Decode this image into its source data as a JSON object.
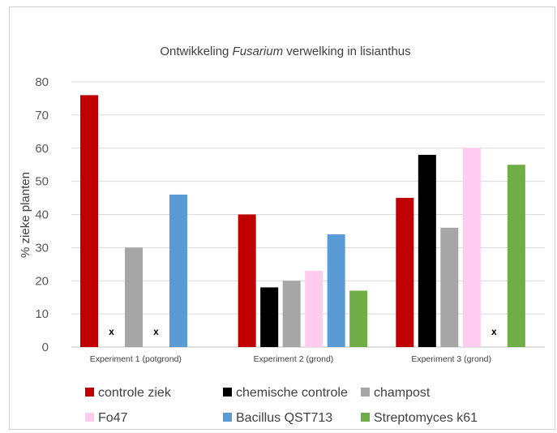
{
  "chart_data": {
    "type": "bar",
    "title_parts": [
      "Ontwikkeling ",
      "Fusarium",
      " verwelking in lisianthus"
    ],
    "ylabel": "% zieke planten",
    "ylim": [
      0,
      80
    ],
    "yticks": [
      0,
      10,
      20,
      30,
      40,
      50,
      60,
      70,
      80
    ],
    "grid": true,
    "legend_position": "bottom",
    "categories": [
      "Experiment 1 (potgrond)",
      "Experiment 2 (grond)",
      "Experiment 3 (grond)"
    ],
    "series": [
      {
        "name": "controle ziek",
        "color": "#c00000",
        "values": [
          76,
          40,
          45
        ]
      },
      {
        "name": "chemische controle",
        "color": "#000000",
        "values": [
          null,
          18,
          58
        ]
      },
      {
        "name": "champost",
        "color": "#a6a6a6",
        "values": [
          30,
          20,
          36
        ]
      },
      {
        "name": "Fo47",
        "color": "#ffccf0",
        "values": [
          null,
          23,
          60
        ]
      },
      {
        "name": "Bacillus QST713",
        "color": "#5b9bd5",
        "values": [
          46,
          34,
          null
        ]
      },
      {
        "name": "Streptomyces k61",
        "color": "#70ad47",
        "values": [
          null,
          17,
          55
        ]
      }
    ],
    "not_tested_marker": "x",
    "not_tested": [
      {
        "category": 0,
        "series": 1
      },
      {
        "category": 0,
        "series": 3
      },
      {
        "category": 2,
        "series": 4
      }
    ]
  }
}
